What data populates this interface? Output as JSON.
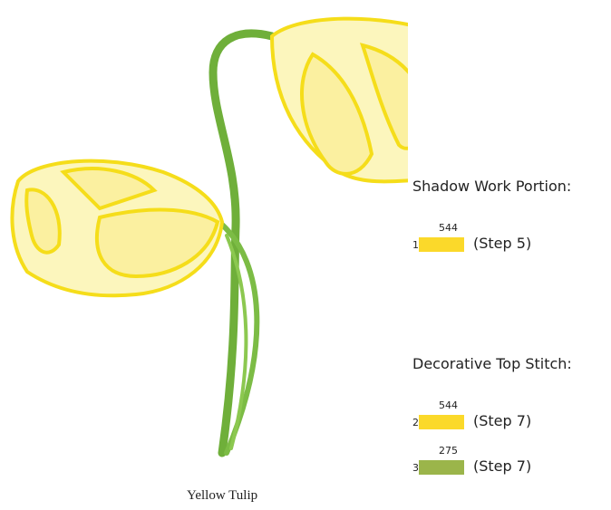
{
  "caption": "Yellow Tulip",
  "sections": [
    {
      "title": "Shadow Work Portion:",
      "threads": [
        {
          "number": "1",
          "code": "544",
          "color": "#fbd92a",
          "step": "(Step 5)"
        }
      ]
    },
    {
      "title": "Decorative Top Stitch:",
      "threads": [
        {
          "number": "2",
          "code": "544",
          "color": "#fbd92a",
          "step": "(Step 7)"
        },
        {
          "number": "3",
          "code": "275",
          "color": "#9bb54a",
          "step": "(Step 7)"
        }
      ]
    }
  ]
}
